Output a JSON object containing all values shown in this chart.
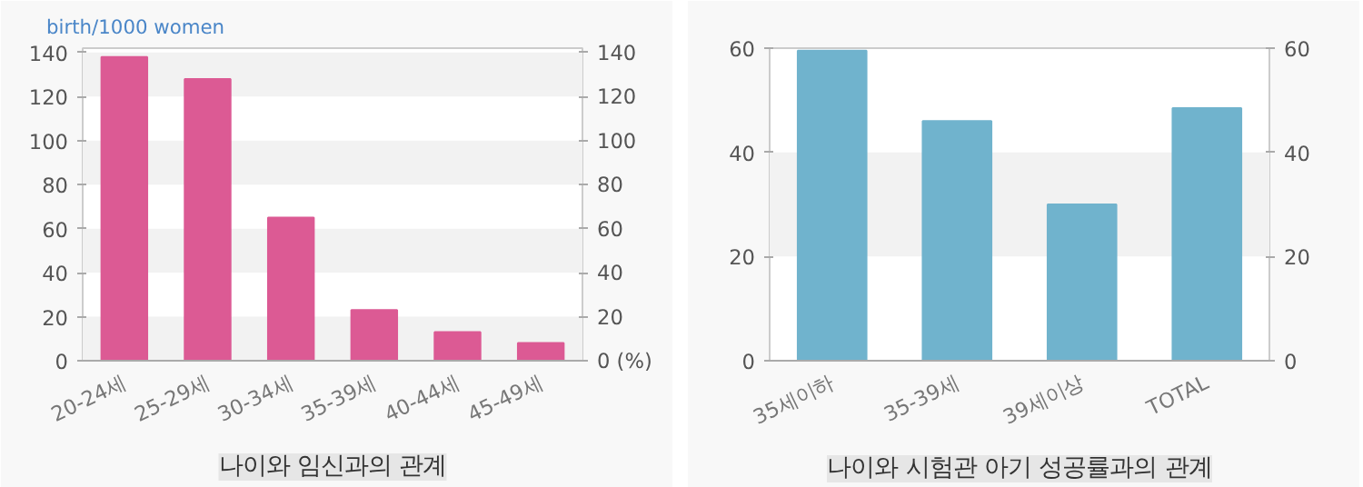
{
  "chart_data": [
    {
      "type": "bar",
      "title": "나이와 임신과의 관계",
      "ylabel": "birth/1000 women",
      "categories": [
        "20-24세",
        "25-29세",
        "30-34세",
        "35-39세",
        "40-44세",
        "45-49세"
      ],
      "series": [
        {
          "color": "#dc5a94",
          "values": [
            138,
            128,
            65,
            23,
            13,
            8
          ]
        }
      ],
      "ylim": [
        0,
        142
      ],
      "yticks": [
        0,
        20,
        40,
        60,
        80,
        100,
        120,
        140
      ],
      "y2lim": [
        0,
        142
      ],
      "y2ticks": [
        {
          "value": 0,
          "label": "0 (%)"
        },
        20,
        40,
        60,
        80,
        100,
        120,
        140
      ],
      "bands": [
        {
          "axis": "y",
          "from": 0,
          "to": 20,
          "color": "#f2f2f2"
        },
        {
          "axis": "y",
          "from": 40,
          "to": 60,
          "color": "#f2f2f2"
        },
        {
          "axis": "y",
          "from": 80,
          "to": 100,
          "color": "#f2f2f2"
        },
        {
          "axis": "y",
          "from": 120,
          "to": 140,
          "color": "#f2f2f2"
        }
      ]
    },
    {
      "type": "bar",
      "title": "나이와 시험관 아기 성공률과의 관계",
      "categories": [
        "35세이하",
        "35-39세",
        "39세이상",
        "TOTAL"
      ],
      "series": [
        {
          "color": "#70b3cd",
          "values": [
            59.5,
            46,
            30,
            48.5
          ]
        }
      ],
      "ylim": [
        0,
        60
      ],
      "yticks": [
        0,
        20,
        40,
        60
      ],
      "y2lim": [
        0,
        60
      ],
      "y2ticks": [
        0,
        20,
        40,
        60
      ],
      "bands": [
        {
          "axis": "y",
          "from": 20,
          "to": 40,
          "color": "#f2f2f2"
        }
      ]
    }
  ]
}
